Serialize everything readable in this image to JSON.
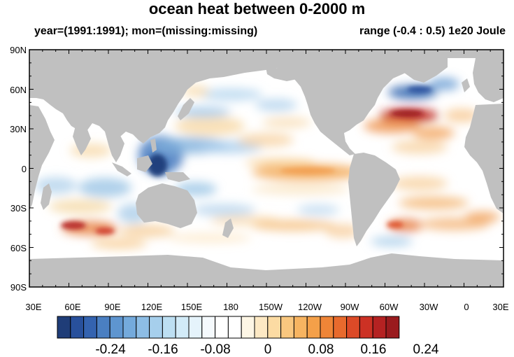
{
  "title": "ocean heat between 0-2000 m",
  "subtitle_left": "year=(1991:1991); mon=(missing:missing)",
  "subtitle_right": "range (-0.4 : 0.5) 1e20 Joule",
  "lat_labels": [
    "90N",
    "60N",
    "30N",
    "0",
    "30S",
    "60S",
    "90S"
  ],
  "lon_labels": [
    "30E",
    "60E",
    "90E",
    "120E",
    "150E",
    "180",
    "150W",
    "120W",
    "90W",
    "60W",
    "30W",
    "0",
    "30E"
  ],
  "colorbar": {
    "labels": [
      "-0.24",
      "-0.16",
      "-0.08",
      "0",
      "0.08",
      "0.16",
      "0.24"
    ],
    "colors": [
      "#1f3d78",
      "#28509c",
      "#3463b0",
      "#4a7fc2",
      "#5e95d0",
      "#74aadc",
      "#8dbde5",
      "#a6cfec",
      "#bddff2",
      "#d2ebf8",
      "#e5f3fb",
      "#f5fafd",
      "#ffffff",
      "#ffffff",
      "#fdf6e5",
      "#fde9c4",
      "#fcdba3",
      "#f9c77f",
      "#f7b461",
      "#f4a049",
      "#ef8537",
      "#e86a2d",
      "#dc4a27",
      "#cc3124",
      "#b52222",
      "#9a1b1e"
    ]
  },
  "colors": {
    "land": "#c0c0c0",
    "frame": "#000000",
    "ocean": "#ffffff"
  }
}
